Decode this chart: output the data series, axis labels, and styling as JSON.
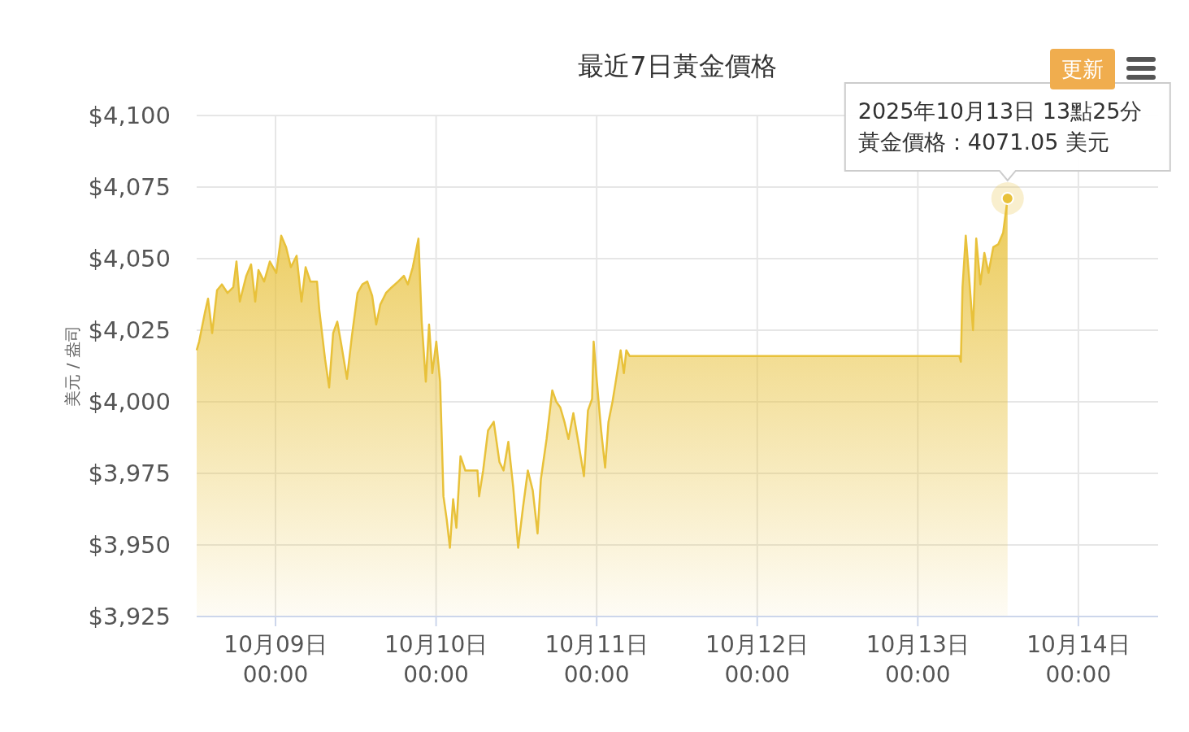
{
  "chart_data": {
    "type": "area",
    "title": "最近7日黃金價格",
    "ylabel": "美元 / 盎司",
    "x": [
      "2025-10-08T12:13",
      "2025-10-08T12:35",
      "2025-10-08T13:26",
      "2025-10-08T13:55",
      "2025-10-08T14:32",
      "2025-10-08T15:16",
      "2025-10-08T15:59",
      "2025-10-08T16:50",
      "2025-10-08T17:41",
      "2025-10-08T18:10",
      "2025-10-08T18:40",
      "2025-10-08T19:38",
      "2025-10-08T20:21",
      "2025-10-08T20:58",
      "2025-10-08T21:27",
      "2025-10-08T22:18",
      "2025-10-08T23:09",
      "2025-10-09T00:07",
      "2025-10-09T00:51",
      "2025-10-09T01:35",
      "2025-10-09T02:18",
      "2025-10-09T03:09",
      "2025-10-09T03:53",
      "2025-10-09T04:30",
      "2025-10-09T05:13",
      "2025-10-09T06:12",
      "2025-10-09T06:33",
      "2025-10-09T07:24",
      "2025-10-09T08:01",
      "2025-10-09T08:37",
      "2025-10-09T09:14",
      "2025-10-09T09:50",
      "2025-10-09T10:41",
      "2025-10-09T11:25",
      "2025-10-09T12:16",
      "2025-10-09T12:59",
      "2025-10-09T13:43",
      "2025-10-09T14:27",
      "2025-10-09T15:03",
      "2025-10-09T15:40",
      "2025-10-09T16:31",
      "2025-10-09T17:22",
      "2025-10-09T18:20",
      "2025-10-09T19:11",
      "2025-10-09T19:47",
      "2025-10-09T20:31",
      "2025-10-09T21:22",
      "2025-10-09T21:51",
      "2025-10-09T22:28",
      "2025-10-09T22:57",
      "2025-10-09T23:26",
      "2025-10-10T00:02",
      "2025-10-10T00:36",
      "2025-10-10T01:06",
      "2025-10-10T01:35",
      "2025-10-10T02:04",
      "2025-10-10T02:33",
      "2025-10-10T03:02",
      "2025-10-10T03:39",
      "2025-10-10T04:22",
      "2025-10-10T05:13",
      "2025-10-10T06:11",
      "2025-10-10T06:26",
      "2025-10-10T07:02",
      "2025-10-10T07:46",
      "2025-10-10T08:37",
      "2025-10-10T09:28",
      "2025-10-10T10:05",
      "2025-10-10T10:48",
      "2025-10-10T11:32",
      "2025-10-10T12:16",
      "2025-10-10T12:59",
      "2025-10-10T13:43",
      "2025-10-10T14:27",
      "2025-10-10T15:10",
      "2025-10-10T15:40",
      "2025-10-10T16:31",
      "2025-10-10T17:22",
      "2025-10-10T17:58",
      "2025-10-10T18:34",
      "2025-10-10T19:11",
      "2025-10-10T19:47",
      "2025-10-10T20:31",
      "2025-10-10T21:15",
      "2025-10-10T22:06",
      "2025-10-10T22:42",
      "2025-10-10T23:19",
      "2025-10-10T23:33",
      "2025-10-11T00:02",
      "2025-10-11T00:40",
      "2025-10-11T01:16",
      "2025-10-11T01:46",
      "2025-10-11T02:22",
      "2025-10-11T02:51",
      "2025-10-11T03:35",
      "2025-10-11T04:04",
      "2025-10-11T04:26",
      "2025-10-11T04:55",
      "2025-10-13T06:12",
      "2025-10-13T06:26",
      "2025-10-13T06:41",
      "2025-10-13T07:10",
      "2025-10-13T07:39",
      "2025-10-13T08:15",
      "2025-10-13T08:44",
      "2025-10-13T09:21",
      "2025-10-13T09:57",
      "2025-10-13T10:34",
      "2025-10-13T11:17",
      "2025-10-13T12:01",
      "2025-10-13T12:45",
      "2025-10-13T13:25"
    ],
    "series": [
      {
        "color": "#e8c13a",
        "values": [
          4018,
          4021,
          4031,
          4036,
          4024,
          4039,
          4041,
          4038,
          4040,
          4049,
          4035,
          4044,
          4048,
          4035,
          4046,
          4042,
          4049,
          4045,
          4058,
          4054,
          4047,
          4051,
          4035,
          4047,
          4042,
          4042,
          4032,
          4015,
          4005,
          4024,
          4028,
          4020,
          4008,
          4023,
          4038,
          4041,
          4042,
          4037,
          4027,
          4034,
          4038,
          4040,
          4042,
          4044,
          4041,
          4047,
          4057,
          4028,
          4007,
          4027,
          4010,
          4021,
          4007,
          3967,
          3959,
          3949,
          3966,
          3956,
          3981,
          3976,
          3976,
          3976,
          3967,
          3976,
          3990,
          3993,
          3979,
          3976,
          3986,
          3970,
          3949,
          3963,
          3976,
          3969,
          3954,
          3973,
          3987,
          4004,
          4000,
          3998,
          3993,
          3987,
          3996,
          3986,
          3974,
          3997,
          4001,
          4021,
          4007,
          3990,
          3977,
          3993,
          4000,
          4007,
          4018,
          4010,
          4018,
          4016,
          4016,
          4014,
          4040,
          4058,
          4044,
          4025,
          4057,
          4041,
          4052,
          4045,
          4054,
          4055,
          4059,
          4071.05
        ]
      }
    ],
    "xlim": [
      "2025-10-08T12:13",
      "2025-10-14T11:55"
    ],
    "xticks": [
      {
        "value": "2025-10-09T00:00",
        "label": "10月09日 00:00"
      },
      {
        "value": "2025-10-10T00:00",
        "label": "10月10日 00:00"
      },
      {
        "value": "2025-10-11T00:00",
        "label": "10月11日 00:00"
      },
      {
        "value": "2025-10-12T00:00",
        "label": "10月12日 00:00"
      },
      {
        "value": "2025-10-13T00:00",
        "label": "10月13日 00:00"
      },
      {
        "value": "2025-10-14T00:00",
        "label": "10月14日 00:00"
      }
    ],
    "ylim": [
      3925,
      4100
    ],
    "yticks": [
      {
        "value": 3925,
        "label": "$3,925"
      },
      {
        "value": 3950,
        "label": "$3,950"
      },
      {
        "value": 3975,
        "label": "$3,975"
      },
      {
        "value": 4000,
        "label": "$4,000"
      },
      {
        "value": 4025,
        "label": "$4,025"
      },
      {
        "value": 4050,
        "label": "$4,050"
      },
      {
        "value": 4075,
        "label": "$4,075"
      },
      {
        "value": 4100,
        "label": "$4,100"
      }
    ],
    "grid": true,
    "annotations": [
      "2025年10月13日 13點25分",
      {
        "text": "黃金價格：4071.05 美元",
        "x": "2025-10-13T13:25",
        "y": 4071.05
      },
      "更新"
    ]
  }
}
